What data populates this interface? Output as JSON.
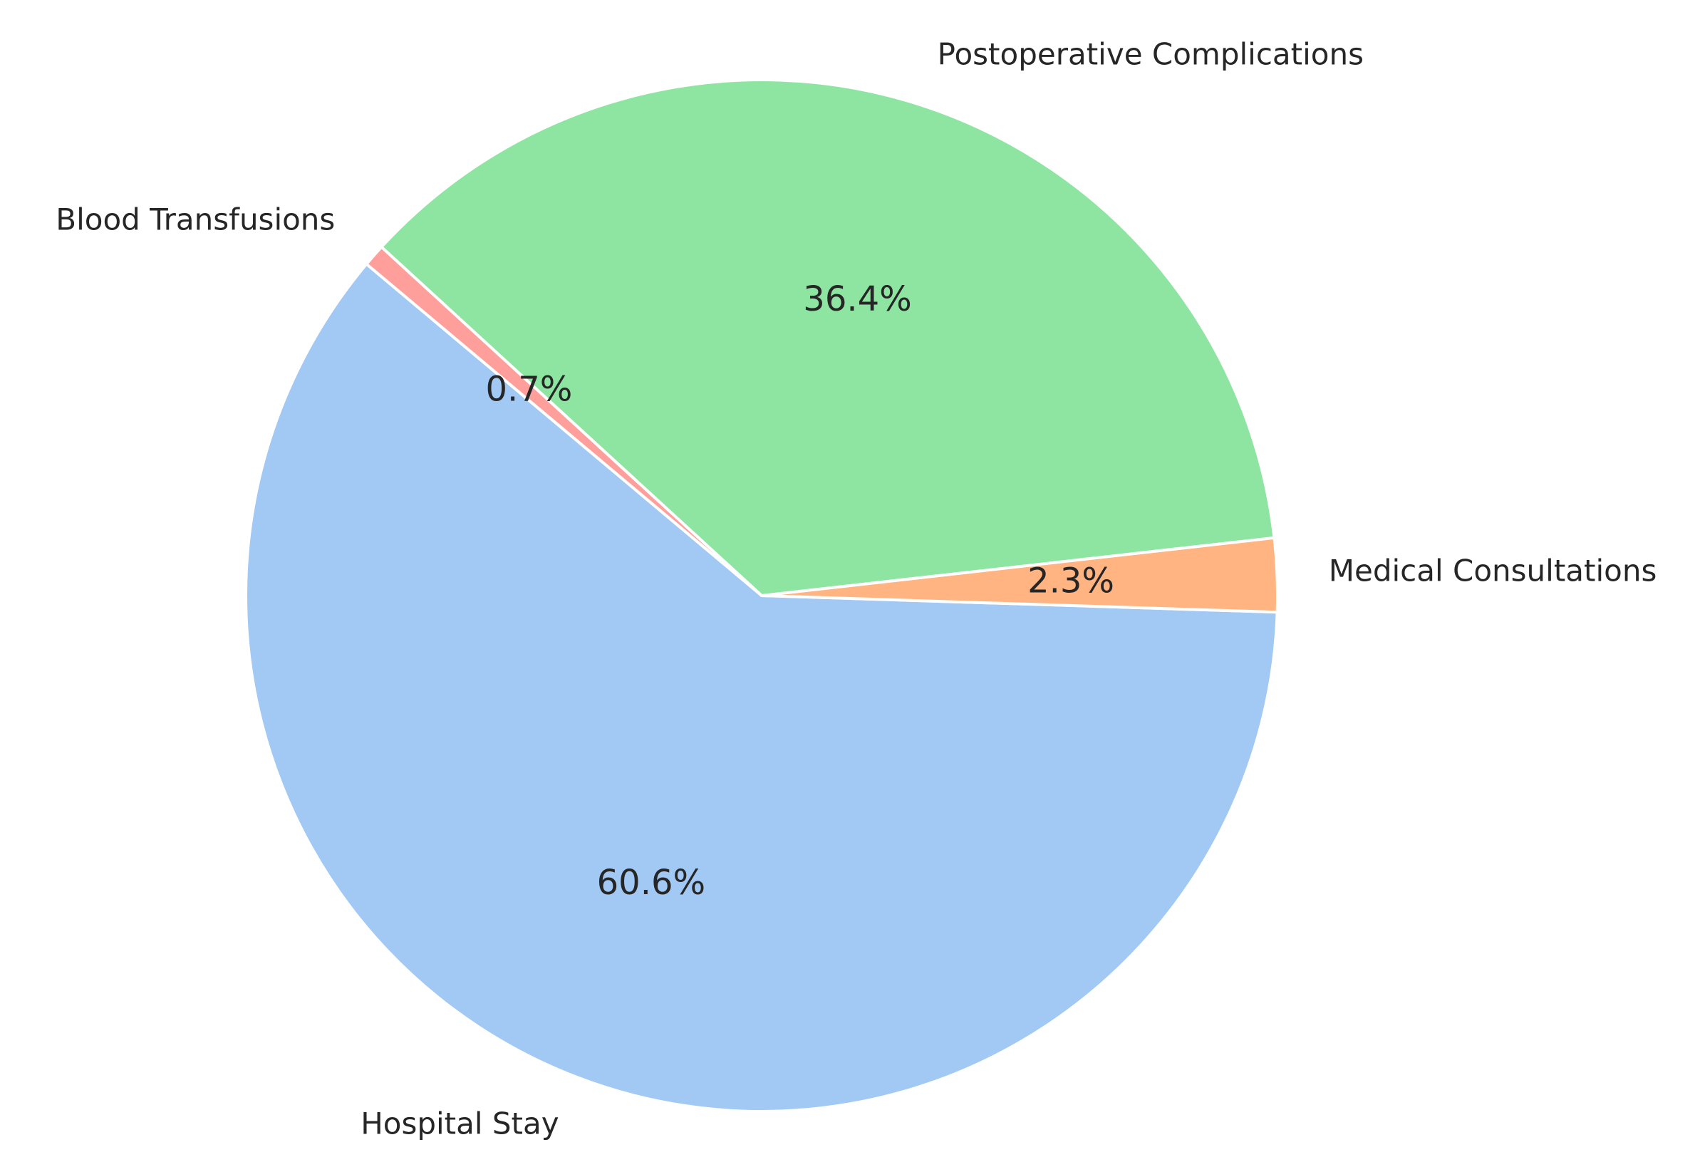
{
  "chart_data": {
    "type": "pie",
    "title": "",
    "start_angle_deg": 140,
    "direction": "counterclockwise",
    "slices": [
      {
        "label": "Hospital Stay",
        "percent": 60.6,
        "percent_text": "60.6%",
        "color": "#a1c9f4"
      },
      {
        "label": "Medical Consultations",
        "percent": 2.3,
        "percent_text": "2.3%",
        "color": "#ffb482"
      },
      {
        "label": "Postoperative Complications",
        "percent": 36.4,
        "percent_text": "36.4%",
        "color": "#8de5a1"
      },
      {
        "label": "Blood Transfusions",
        "percent": 0.7,
        "percent_text": "0.7%",
        "color": "#ff9f9b"
      }
    ]
  }
}
